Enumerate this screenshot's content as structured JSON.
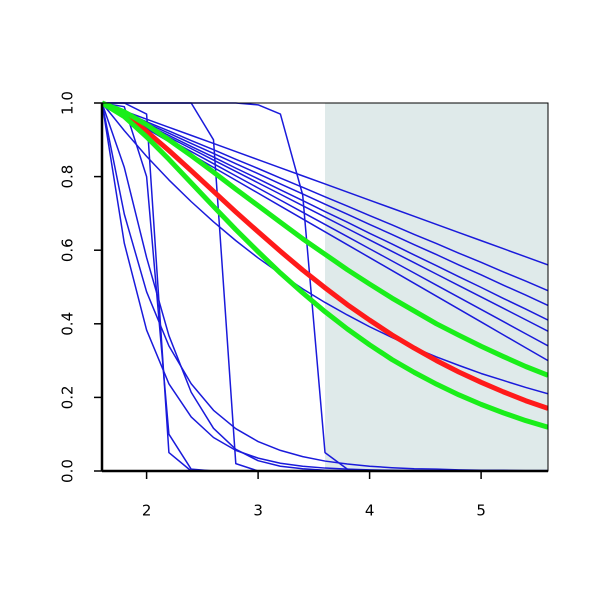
{
  "chart_data": {
    "type": "line",
    "x": [
      1.6,
      1.8,
      2.0,
      2.2,
      2.4,
      2.6,
      2.8,
      3.0,
      3.2,
      3.4,
      3.6,
      3.8,
      4.0,
      4.2,
      4.4,
      4.6,
      4.8,
      5.0,
      5.2,
      5.4,
      5.6
    ],
    "xlim": [
      1.6,
      5.6
    ],
    "ylim": [
      0,
      1
    ],
    "xticks": [
      2,
      3,
      4,
      5
    ],
    "yticks": [
      {
        "value": 0,
        "label": "0.0"
      },
      {
        "value": 0.2,
        "label": "0.2"
      },
      {
        "value": 0.4,
        "label": "0.4"
      },
      {
        "value": 0.6,
        "label": "0.6"
      },
      {
        "value": 0.8,
        "label": "0.8"
      },
      {
        "value": 1,
        "label": "1.0"
      }
    ],
    "shaded_region": {
      "xlim": [
        3.6,
        5.6
      ],
      "color": "#dfeaea"
    },
    "series": [
      {
        "color": "#1a1adb",
        "line_width": 1.5,
        "values": [
          1,
          0.978,
          0.956,
          0.934,
          0.912,
          0.89,
          0.868,
          0.846,
          0.824,
          0.802,
          0.78,
          0.758,
          0.736,
          0.714,
          0.692,
          0.67,
          0.648,
          0.626,
          0.604,
          0.582,
          0.56
        ]
      },
      {
        "color": "#1a1adb",
        "line_width": 1.5,
        "values": [
          1,
          0.975,
          0.949,
          0.924,
          0.898,
          0.873,
          0.847,
          0.822,
          0.796,
          0.771,
          0.745,
          0.72,
          0.694,
          0.669,
          0.643,
          0.618,
          0.592,
          0.567,
          0.541,
          0.516,
          0.49
        ]
      },
      {
        "color": "#1a1adb",
        "line_width": 1.5,
        "values": [
          1,
          0.973,
          0.945,
          0.918,
          0.89,
          0.863,
          0.835,
          0.808,
          0.78,
          0.753,
          0.725,
          0.698,
          0.67,
          0.643,
          0.615,
          0.588,
          0.56,
          0.533,
          0.505,
          0.478,
          0.45
        ]
      },
      {
        "color": "#1a1adb",
        "line_width": 1.5,
        "values": [
          1,
          0.971,
          0.941,
          0.912,
          0.882,
          0.853,
          0.823,
          0.794,
          0.764,
          0.735,
          0.705,
          0.676,
          0.646,
          0.617,
          0.587,
          0.558,
          0.528,
          0.499,
          0.469,
          0.44,
          0.41
        ]
      },
      {
        "color": "#1a1adb",
        "line_width": 1.5,
        "values": [
          1,
          0.969,
          0.938,
          0.907,
          0.876,
          0.845,
          0.814,
          0.783,
          0.752,
          0.721,
          0.69,
          0.659,
          0.628,
          0.597,
          0.566,
          0.535,
          0.504,
          0.473,
          0.442,
          0.411,
          0.38
        ]
      },
      {
        "color": "#1a1adb",
        "line_width": 1.5,
        "values": [
          1,
          0.967,
          0.934,
          0.901,
          0.868,
          0.835,
          0.802,
          0.769,
          0.736,
          0.703,
          0.67,
          0.637,
          0.604,
          0.571,
          0.538,
          0.505,
          0.472,
          0.439,
          0.406,
          0.373,
          0.34
        ]
      },
      {
        "color": "#1a1adb",
        "line_width": 1.5,
        "values": [
          1,
          0.965,
          0.93,
          0.895,
          0.86,
          0.825,
          0.79,
          0.755,
          0.72,
          0.685,
          0.65,
          0.615,
          0.58,
          0.545,
          0.51,
          0.475,
          0.44,
          0.405,
          0.37,
          0.335,
          0.3
        ]
      },
      {
        "color": "#1a1adb",
        "line_width": 1.5,
        "values": [
          1,
          0.925,
          0.855,
          0.791,
          0.732,
          0.677,
          0.626,
          0.579,
          0.536,
          0.495,
          0.458,
          0.424,
          0.392,
          0.363,
          0.335,
          0.31,
          0.287,
          0.265,
          0.246,
          0.227,
          0.21
        ]
      },
      {
        "color": "#1a1adb",
        "line_width": 1.5,
        "values": [
          1,
          1,
          0.97,
          0.05,
          0,
          0,
          0,
          0,
          0,
          0,
          0,
          0,
          0,
          0,
          0,
          0,
          0,
          0,
          0,
          0,
          0
        ]
      },
      {
        "color": "#1a1adb",
        "line_width": 1.5,
        "values": [
          1,
          0.99,
          0.8,
          0.1,
          0.005,
          0,
          0,
          0,
          0,
          0,
          0,
          0,
          0,
          0,
          0,
          0,
          0,
          0,
          0,
          0,
          0
        ]
      },
      {
        "color": "#1a1adb",
        "line_width": 1.5,
        "values": [
          1,
          1,
          1,
          1,
          1,
          0.9,
          0.02,
          0,
          0,
          0,
          0,
          0,
          0,
          0,
          0,
          0,
          0,
          0,
          0,
          0,
          0
        ]
      },
      {
        "color": "#1a1adb",
        "line_width": 1.5,
        "values": [
          1,
          1,
          1,
          1,
          1,
          1,
          1,
          0.995,
          0.97,
          0.75,
          0.05,
          0.005,
          0,
          0,
          0,
          0,
          0,
          0,
          0,
          0,
          0
        ]
      },
      {
        "color": "#1a1adb",
        "line_width": 1.5,
        "values": [
          1,
          0.619,
          0.383,
          0.237,
          0.147,
          0.091,
          0.056,
          0.035,
          0.021,
          0.013,
          0.008,
          0.005,
          0.003,
          0.002,
          0.001,
          0.001,
          0,
          0,
          0,
          0,
          0
        ]
      },
      {
        "color": "#1a1adb",
        "line_width": 1.5,
        "values": [
          1,
          0.825,
          0.58,
          0.368,
          0.214,
          0.116,
          0.059,
          0.028,
          0.013,
          0.006,
          0.002,
          0,
          0,
          0,
          0,
          0,
          0,
          0,
          0,
          0,
          0
        ]
      },
      {
        "color": "#1a1adb",
        "line_width": 1.5,
        "values": [
          1,
          0.698,
          0.487,
          0.34,
          0.237,
          0.165,
          0.115,
          0.08,
          0.056,
          0.039,
          0.027,
          0.019,
          0.013,
          0.009,
          0.006,
          0.005,
          0.003,
          0.002,
          0.002,
          0.001,
          0.001
        ]
      },
      {
        "color": "#ff1a1a",
        "line_width": 5,
        "values": [
          1,
          0.969,
          0.923,
          0.871,
          0.816,
          0.76,
          0.704,
          0.65,
          0.597,
          0.546,
          0.498,
          0.452,
          0.41,
          0.37,
          0.334,
          0.3,
          0.269,
          0.241,
          0.215,
          0.191,
          0.17
        ]
      },
      {
        "color": "#1aee1a",
        "line_width": 5,
        "values": [
          1,
          0.976,
          0.941,
          0.9,
          0.857,
          0.812,
          0.766,
          0.721,
          0.676,
          0.631,
          0.589,
          0.547,
          0.508,
          0.47,
          0.435,
          0.4,
          0.369,
          0.339,
          0.311,
          0.284,
          0.26
        ]
      },
      {
        "color": "#1aee1a",
        "line_width": 5,
        "values": [
          1,
          0.963,
          0.908,
          0.847,
          0.783,
          0.719,
          0.656,
          0.596,
          0.538,
          0.484,
          0.433,
          0.386,
          0.343,
          0.303,
          0.268,
          0.236,
          0.207,
          0.181,
          0.158,
          0.137,
          0.119
        ]
      }
    ]
  }
}
